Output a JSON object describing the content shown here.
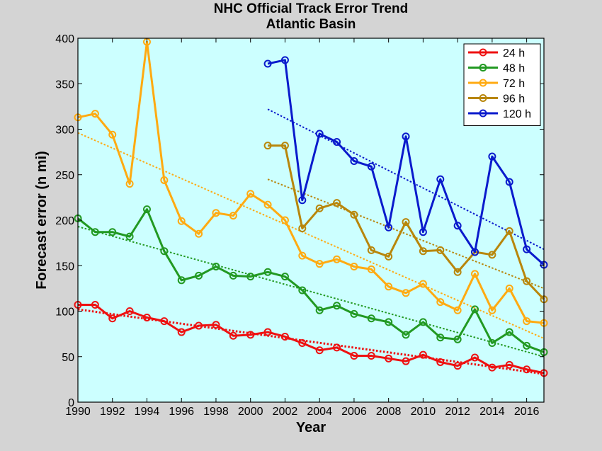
{
  "chart_data": {
    "type": "line",
    "title": "NHC Official Track Error Trend",
    "subtitle": "Atlantic Basin",
    "xlabel": "Year",
    "ylabel": "Forecast error (n mi)",
    "xlim": [
      1990,
      2017
    ],
    "ylim": [
      0,
      400
    ],
    "x_ticks": [
      "1990",
      "1992",
      "1994",
      "1996",
      "1998",
      "2000",
      "2002",
      "2004",
      "2006",
      "2008",
      "2010",
      "2012",
      "2014",
      "2016"
    ],
    "y_ticks": [
      "0",
      "50",
      "100",
      "150",
      "200",
      "250",
      "300",
      "350",
      "400"
    ],
    "background_color": "#ccffff",
    "grid": false,
    "legend_position": "top-right",
    "series": [
      {
        "name": "24 h",
        "color": "#ee1111",
        "x": [
          1990,
          1991,
          1992,
          1993,
          1994,
          1995,
          1996,
          1997,
          1998,
          1999,
          2000,
          2001,
          2002,
          2003,
          2004,
          2005,
          2006,
          2007,
          2008,
          2009,
          2010,
          2011,
          2012,
          2013,
          2014,
          2015,
          2016,
          2017
        ],
        "values": [
          107,
          107,
          92,
          100,
          93,
          89,
          77,
          84,
          85,
          73,
          74,
          77,
          72,
          65,
          57,
          60,
          51,
          51,
          48,
          45,
          52,
          44,
          40,
          49,
          38,
          41,
          36,
          32
        ],
        "trend": [
          102,
          31
        ]
      },
      {
        "name": "48 h",
        "color": "#229922",
        "x": [
          1990,
          1991,
          1992,
          1993,
          1994,
          1995,
          1996,
          1997,
          1998,
          1999,
          2000,
          2001,
          2002,
          2003,
          2004,
          2005,
          2006,
          2007,
          2008,
          2009,
          2010,
          2011,
          2012,
          2013,
          2014,
          2015,
          2016,
          2017
        ],
        "values": [
          202,
          187,
          187,
          182,
          212,
          166,
          134,
          139,
          149,
          139,
          138,
          143,
          138,
          123,
          101,
          106,
          97,
          92,
          88,
          74,
          88,
          71,
          69,
          102,
          65,
          77,
          62,
          55
        ],
        "trend": [
          193,
          50
        ]
      },
      {
        "name": "72 h",
        "color": "#ffaa11",
        "x": [
          1990,
          1991,
          1992,
          1993,
          1994,
          1995,
          1996,
          1997,
          1998,
          1999,
          2000,
          2001,
          2002,
          2003,
          2004,
          2005,
          2006,
          2007,
          2008,
          2009,
          2010,
          2011,
          2012,
          2013,
          2014,
          2015,
          2016,
          2017
        ],
        "values": [
          313,
          317,
          294,
          240,
          396,
          244,
          199,
          185,
          208,
          205,
          229,
          217,
          200,
          161,
          152,
          157,
          149,
          146,
          127,
          120,
          130,
          110,
          101,
          141,
          101,
          125,
          89,
          87
        ],
        "trend": [
          296,
          70
        ]
      },
      {
        "name": "96 h",
        "color": "#b8860b",
        "x": [
          2001,
          2002,
          2003,
          2004,
          2005,
          2006,
          2007,
          2008,
          2009,
          2010,
          2011,
          2012,
          2013,
          2014,
          2015,
          2016,
          2017
        ],
        "values": [
          282,
          282,
          191,
          213,
          219,
          206,
          167,
          160,
          198,
          166,
          167,
          143,
          165,
          162,
          188,
          133,
          113
        ],
        "trend": [
          245,
          125
        ]
      },
      {
        "name": "120 h",
        "color": "#0a1acc",
        "x": [
          2001,
          2002,
          2003,
          2004,
          2005,
          2006,
          2007,
          2008,
          2009,
          2010,
          2011,
          2012,
          2013,
          2014,
          2015,
          2016,
          2017
        ],
        "values": [
          372,
          376,
          222,
          295,
          286,
          265,
          259,
          192,
          292,
          187,
          245,
          194,
          165,
          270,
          242,
          168,
          151
        ],
        "trend": [
          322,
          168
        ]
      }
    ]
  }
}
